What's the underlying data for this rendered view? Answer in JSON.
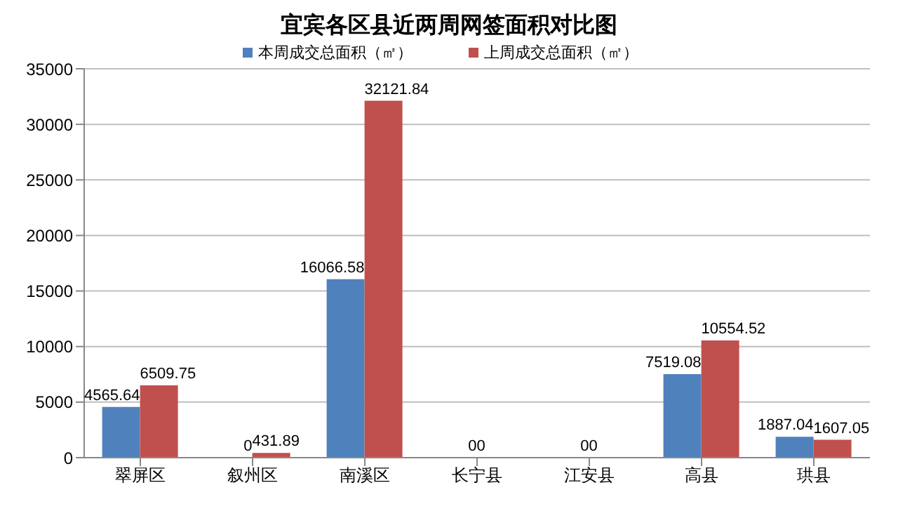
{
  "chart_data": {
    "type": "bar",
    "title": "宜宾各区县近两周网签面积对比图",
    "categories": [
      "翠屏区",
      "叙州区",
      "南溪区",
      "长宁县",
      "江安县",
      "高县",
      "珙县"
    ],
    "series": [
      {
        "name": "本周成交总面积（㎡）",
        "color": "#4f81bd",
        "values": [
          4565.64,
          0,
          16066.58,
          0,
          0,
          7519.08,
          1887.04
        ]
      },
      {
        "name": "上周成交总面积（㎡）",
        "color": "#c0504d",
        "values": [
          6509.75,
          431.89,
          32121.84,
          0,
          0,
          10554.52,
          1607.05
        ]
      }
    ],
    "ylim": [
      0,
      35000
    ],
    "yticks": [
      0,
      5000,
      10000,
      15000,
      20000,
      25000,
      30000,
      35000
    ],
    "grid": "y",
    "legend": "top",
    "data_labels": true
  }
}
